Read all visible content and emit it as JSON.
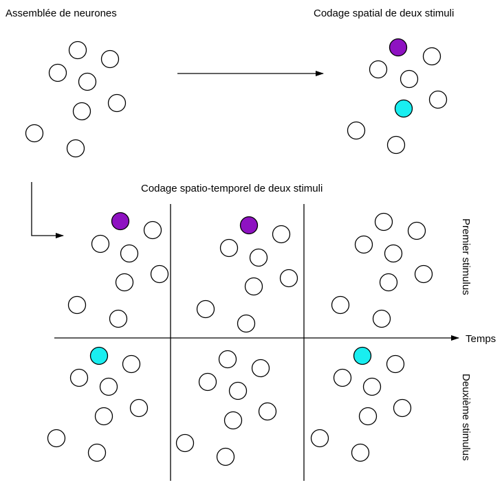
{
  "labels": {
    "assembly": "Assemblée de neurones",
    "spatial": "Codage spatial de deux stimuli",
    "spatiotemporal": "Codage spatio-temporel de deux stimuli",
    "time_axis": "Temps",
    "first_stimulus": "Premier stimulus",
    "second_stimulus": "Deuxième stimulus"
  },
  "colors": {
    "inactive": "#ffffff",
    "stimulus_1": "#8e12c1",
    "stimulus_2": "#19eef0",
    "stroke": "#000000"
  },
  "groups": [
    {
      "name": "assembly",
      "active": []
    },
    {
      "name": "spatial-coding",
      "active": [
        "stimulus_1",
        "stimulus_2"
      ]
    },
    {
      "name": "time-1-first-stimulus",
      "active": [
        "stimulus_1"
      ]
    },
    {
      "name": "time-2-first-stimulus",
      "active": [
        "stimulus_1"
      ]
    },
    {
      "name": "time-3-first-stimulus",
      "active": []
    },
    {
      "name": "time-1-second-stimulus",
      "active": [
        "stimulus_2"
      ]
    },
    {
      "name": "time-2-second-stimulus",
      "active": []
    },
    {
      "name": "time-3-second-stimulus",
      "active": [
        "stimulus_2"
      ]
    }
  ]
}
